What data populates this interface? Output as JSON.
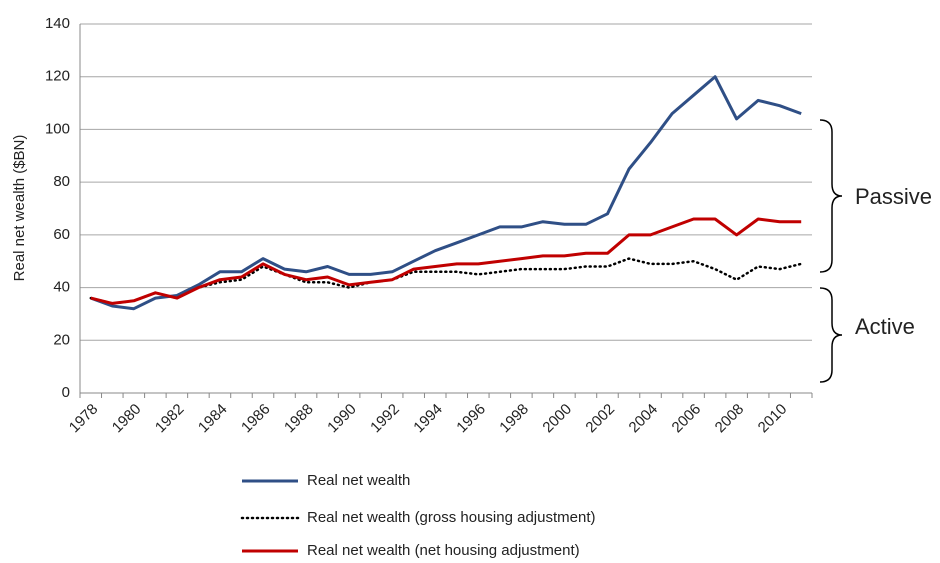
{
  "chart_data": {
    "type": "line",
    "y_label": "Real net wealth ($BN)",
    "categories": [
      "1978",
      null,
      "1980",
      null,
      "1982",
      null,
      "1984",
      null,
      "1986",
      null,
      "1988",
      null,
      "1990",
      null,
      "1992",
      null,
      "1994",
      null,
      "1996",
      null,
      "1998",
      null,
      "2000",
      null,
      "2002",
      null,
      "2004",
      null,
      "2006",
      null,
      "2008",
      null,
      "2010",
      null
    ],
    "series": [
      {
        "name": "Real net wealth",
        "color": "#2f4f86",
        "style": "solid",
        "values": [
          36,
          33,
          32,
          36,
          37,
          41,
          46,
          46,
          51,
          47,
          46,
          48,
          45,
          45,
          46,
          50,
          54,
          57,
          60,
          63,
          63,
          65,
          64,
          64,
          68,
          85,
          95,
          106,
          113,
          120,
          104,
          111,
          109,
          106
        ]
      },
      {
        "name": "Real net wealth (gross housing adjustment)",
        "color": "#000000",
        "style": "dotted",
        "values": [
          36,
          34,
          35,
          38,
          36,
          40,
          42,
          43,
          48,
          45,
          42,
          42,
          40,
          42,
          43,
          46,
          46,
          46,
          45,
          46,
          47,
          47,
          47,
          48,
          48,
          51,
          49,
          49,
          50,
          47,
          43,
          48,
          47,
          49
        ]
      },
      {
        "name": "Real net wealth (net housing adjustment)",
        "color": "#c00000",
        "style": "solid",
        "values": [
          36,
          34,
          35,
          38,
          36,
          40,
          43,
          44,
          49,
          45,
          43,
          44,
          41,
          42,
          43,
          47,
          48,
          49,
          49,
          50,
          51,
          52,
          52,
          53,
          53,
          60,
          60,
          63,
          66,
          66,
          60,
          66,
          65,
          65
        ]
      }
    ],
    "ylim": [
      0,
      140
    ],
    "yticks": [
      0,
      20,
      40,
      60,
      80,
      100,
      120,
      140
    ],
    "grid": true,
    "annotations": [
      "Passive",
      "Active"
    ]
  }
}
